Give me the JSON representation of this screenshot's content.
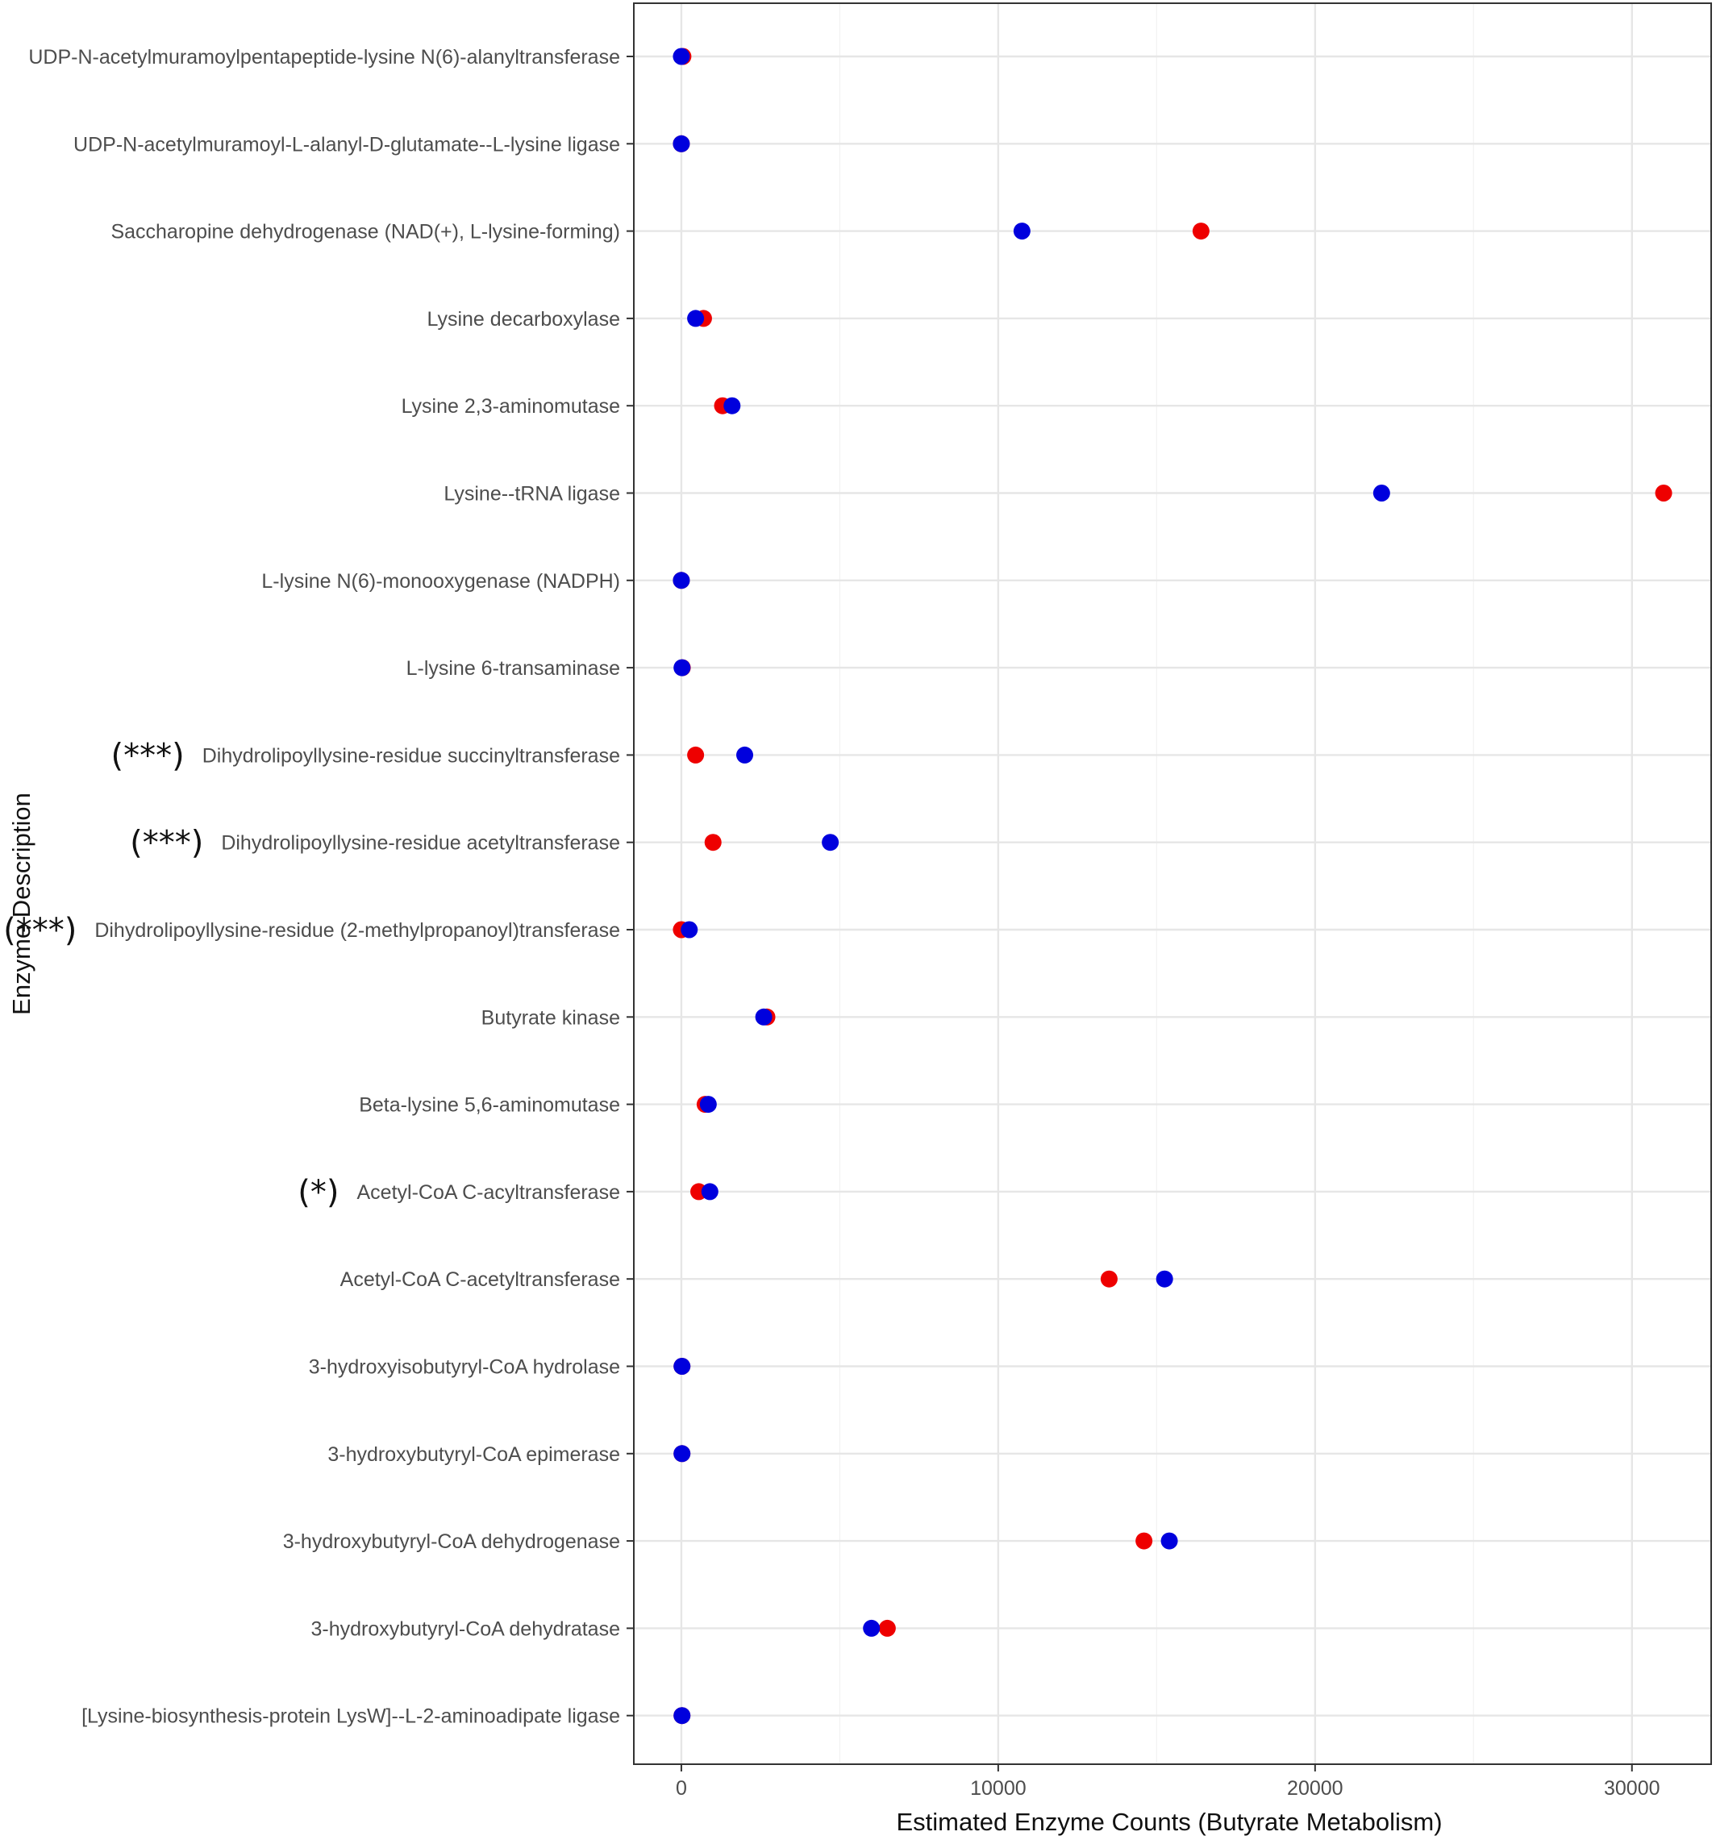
{
  "chart_data": {
    "type": "scatter",
    "xlabel": "Estimated Enzyme Counts (Butyrate Metabolism)",
    "ylabel": "Enzyme Description",
    "xlim": [
      -1500,
      32500
    ],
    "x_ticks": [
      0,
      10000,
      20000,
      30000
    ],
    "x_tick_labels": [
      "0",
      "10000",
      "20000",
      "30000"
    ],
    "grid": true,
    "legend": "none",
    "colors": {
      "red_series": "#ee0000",
      "blue_series": "#0000dd"
    },
    "categories": [
      "UDP-N-acetylmuramoylpentapeptide-lysine N(6)-alanyltransferase",
      "UDP-N-acetylmuramoyl-L-alanyl-D-glutamate--L-lysine ligase",
      "Saccharopine dehydrogenase (NAD(+), L-lysine-forming)",
      "Lysine decarboxylase",
      "Lysine 2,3-aminomutase",
      "Lysine--tRNA ligase",
      "L-lysine N(6)-monooxygenase (NADPH)",
      "L-lysine 6-transaminase",
      "Dihydrolipoyllysine-residue succinyltransferase",
      "Dihydrolipoyllysine-residue acetyltransferase",
      "Dihydrolipoyllysine-residue (2-methylpropanoyl)transferase",
      "Butyrate kinase",
      "Beta-lysine 5,6-aminomutase",
      "Acetyl-CoA C-acyltransferase",
      "Acetyl-CoA C-acetyltransferase",
      "3-hydroxyisobutyryl-CoA hydrolase",
      "3-hydroxybutyryl-CoA epimerase",
      "3-hydroxybutyryl-CoA dehydrogenase",
      "3-hydroxybutyryl-CoA dehydratase",
      "[Lysine-biosynthesis-protein LysW]--L-2-aminoadipate ligase"
    ],
    "significance": [
      "",
      "",
      "",
      "",
      "",
      "",
      "",
      "",
      "(***)",
      "(***)",
      "(***)",
      "",
      "",
      "(*)",
      "",
      "",
      "",
      "",
      "",
      ""
    ],
    "series": [
      {
        "color": "#ee0000",
        "values": [
          50,
          0,
          16400,
          700,
          1300,
          31000,
          0,
          30,
          450,
          1000,
          0,
          2700,
          750,
          550,
          13500,
          20,
          20,
          14600,
          6500,
          20
        ]
      },
      {
        "color": "#0000dd",
        "values": [
          0,
          0,
          10750,
          450,
          1600,
          22100,
          0,
          20,
          2000,
          4700,
          250,
          2600,
          850,
          900,
          15250,
          20,
          20,
          15400,
          6000,
          20
        ]
      }
    ]
  }
}
